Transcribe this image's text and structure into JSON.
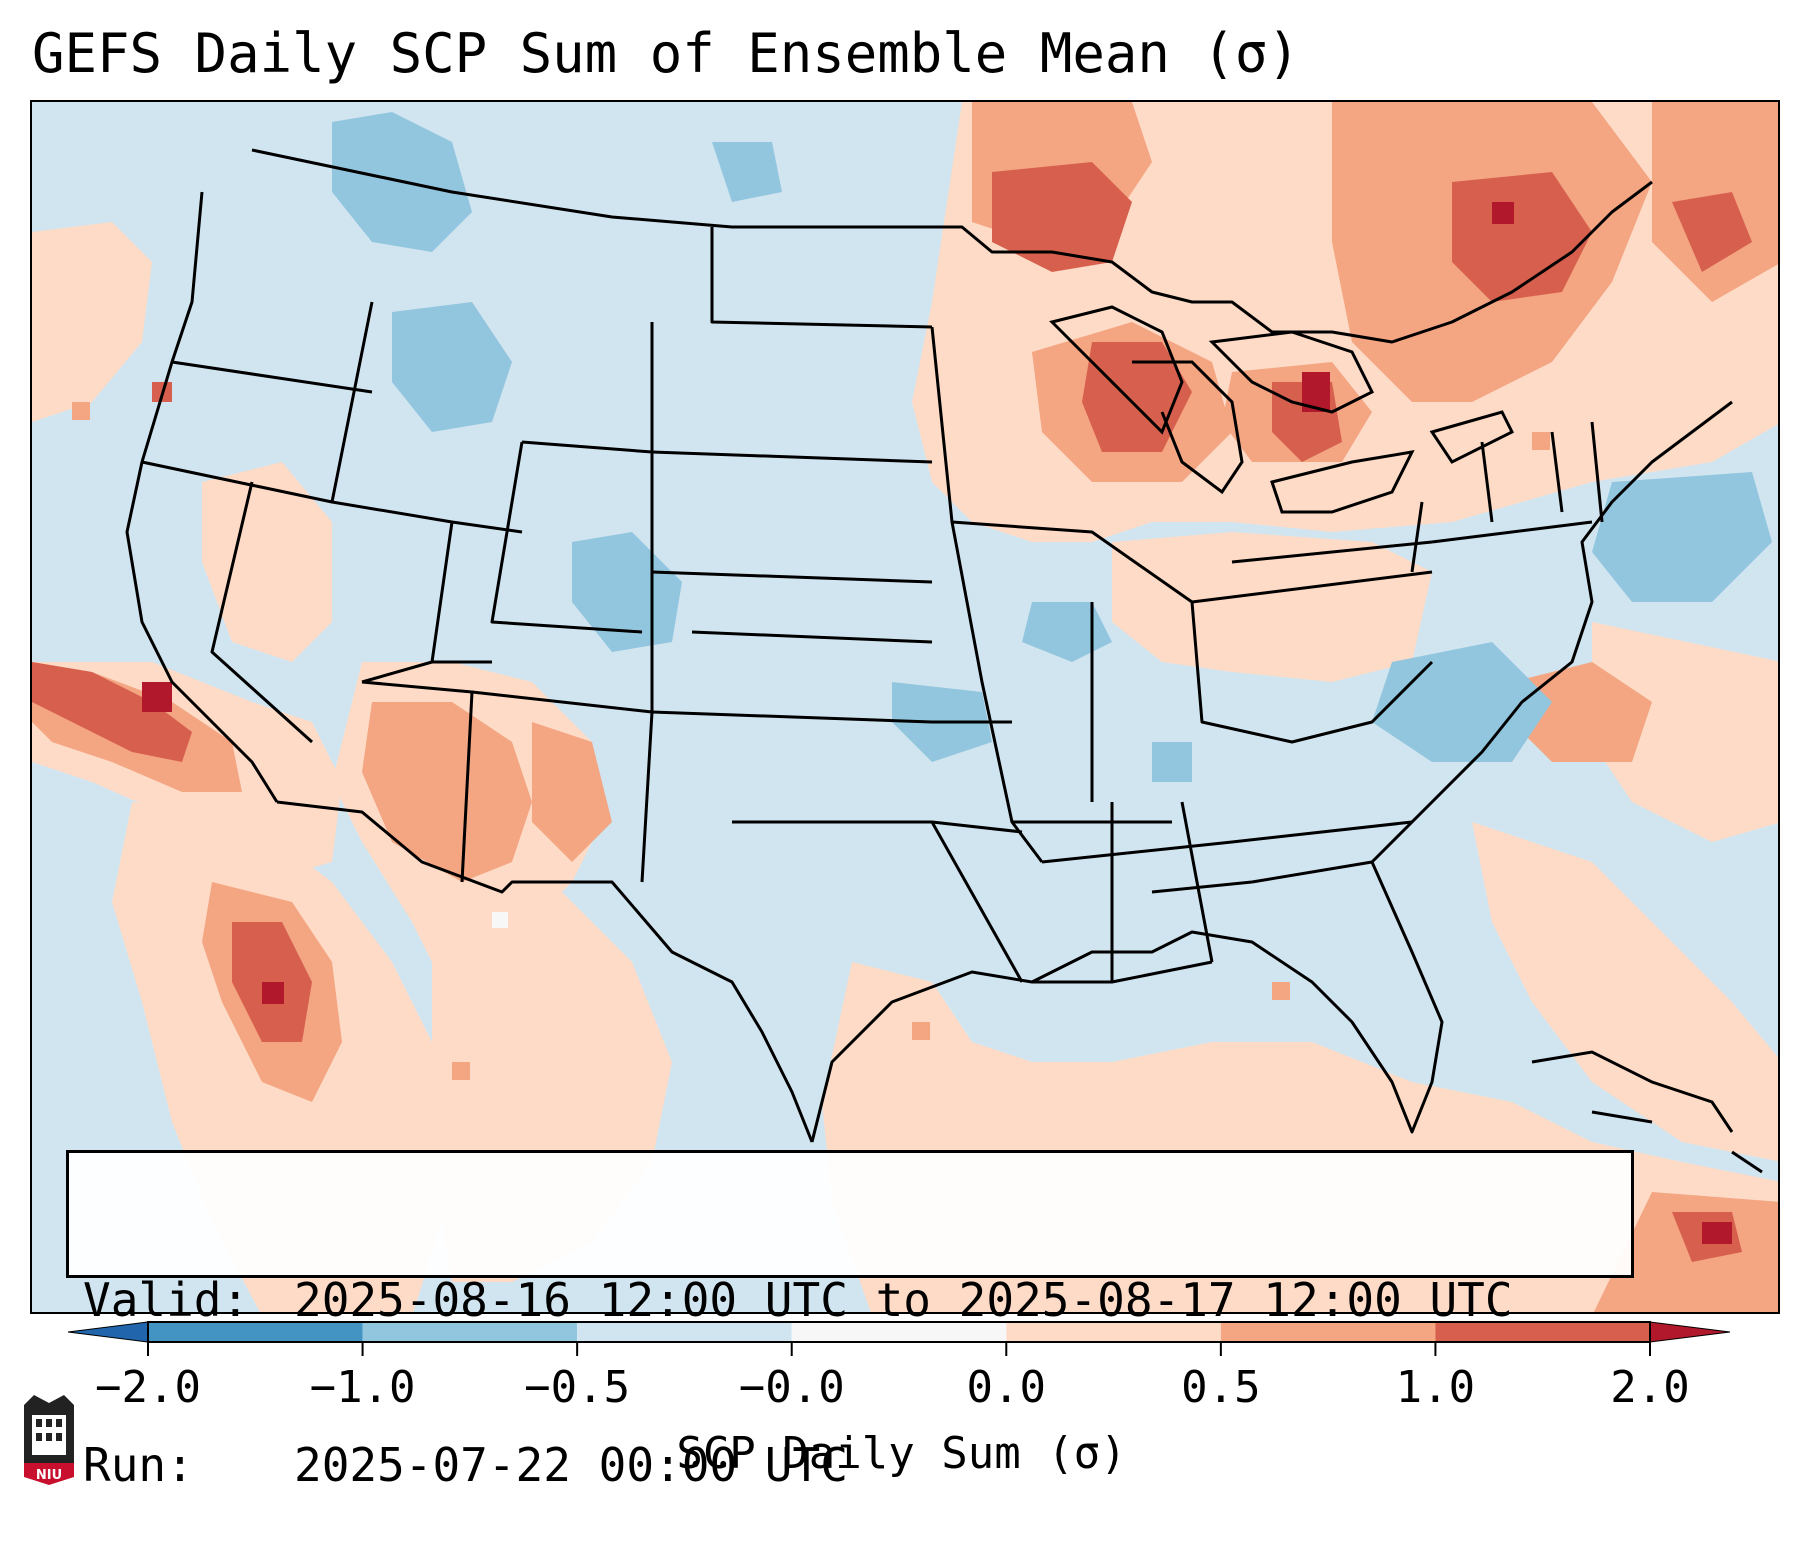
{
  "title": "GEFS Daily SCP Sum of Ensemble Mean (σ)",
  "info": {
    "valid_label": "Valid:",
    "valid_value": "2025-08-16 12:00 UTC to 2025-08-17 12:00 UTC",
    "run_label": "Run:",
    "run_value": "2025-07-22 00:00 UTC"
  },
  "colorbar": {
    "label": "SCP Daily Sum (σ)",
    "ticks": [
      "−2.0",
      "−1.0",
      "−0.5",
      "−0.0",
      "0.0",
      "0.5",
      "1.0",
      "2.0"
    ],
    "bins": [
      {
        "range": "< -2.0",
        "color": "#2166ac"
      },
      {
        "range": "-2.0 to -1.0",
        "color": "#4393c3"
      },
      {
        "range": "-1.0 to -0.5",
        "color": "#92c5de"
      },
      {
        "range": "-0.5 to -0.0",
        "color": "#d1e5f0"
      },
      {
        "range": "-0.0 to 0.0",
        "color": "#f7f7f7"
      },
      {
        "range": "0.0 to 0.5",
        "color": "#fddbc7"
      },
      {
        "range": "0.5 to 1.0",
        "color": "#f4a582"
      },
      {
        "range": "1.0 to 2.0",
        "color": "#d6604d"
      },
      {
        "range": "> 2.0",
        "color": "#b2182b"
      }
    ]
  },
  "logo": {
    "text": "NIU",
    "color": "#c8102e"
  }
}
